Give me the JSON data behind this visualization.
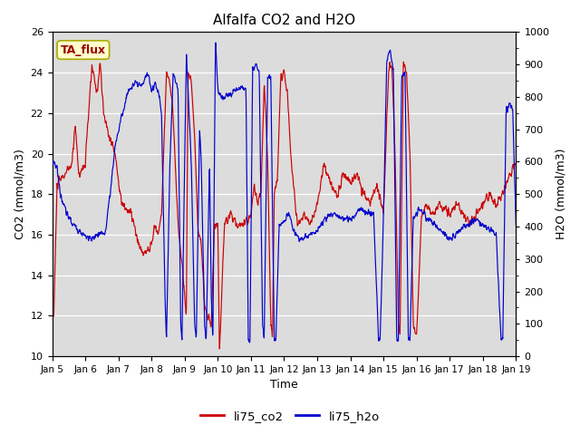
{
  "title": "Alfalfa CO2 and H2O",
  "xlabel": "Time",
  "ylabel_left": "CO2 (mmol/m3)",
  "ylabel_right": "H2O (mmol/m3)",
  "annotation_text": "TA_flux",
  "ylim_left": [
    10,
    26
  ],
  "ylim_right": [
    0,
    1000
  ],
  "yticks_left": [
    10,
    12,
    14,
    16,
    18,
    20,
    22,
    24,
    26
  ],
  "yticks_right": [
    0,
    100,
    200,
    300,
    400,
    500,
    600,
    700,
    800,
    900,
    1000
  ],
  "xtick_labels": [
    "Jan 5",
    "Jan 6",
    "Jan 7",
    "Jan 8",
    "Jan 9",
    "Jan 10",
    "Jan 11",
    "Jan 12",
    "Jan 13",
    "Jan 14",
    "Jan 15",
    "Jan 16",
    "Jan 17",
    "Jan 18",
    "Jan 19"
  ],
  "background_color": "#dcdcdc",
  "co2_color": "#cc0000",
  "h2o_color": "#0000cc",
  "legend_co2": "li75_co2",
  "legend_h2o": "li75_h2o",
  "annotation_bg": "#ffffcc",
  "annotation_border": "#aaaa00",
  "fig_width": 6.4,
  "fig_height": 4.8,
  "dpi": 100
}
